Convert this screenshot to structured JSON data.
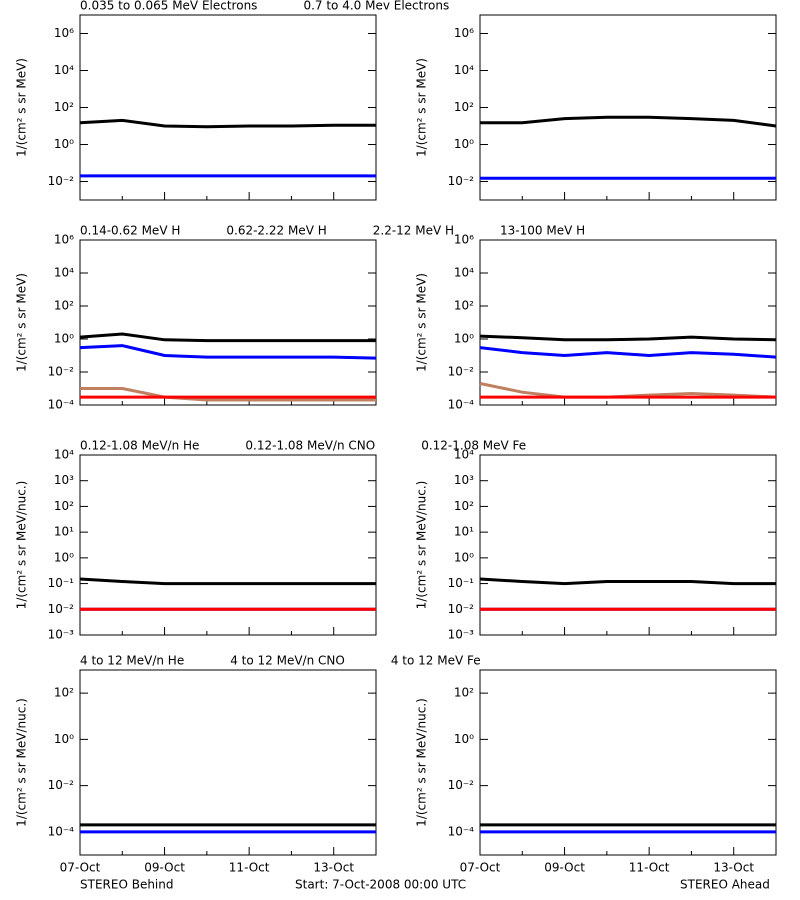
{
  "chart_data": [
    {
      "type": "line",
      "log_y": true,
      "ylabel": "1/(cm² s sr MeV)",
      "ylim": [
        0.001,
        10000000
      ],
      "yticks": [
        {
          "value": 0.01,
          "label": "10⁻²"
        },
        {
          "value": 1,
          "label": "10⁰"
        },
        {
          "value": 100,
          "label": "10²"
        },
        {
          "value": 10000,
          "label": "10⁴"
        },
        {
          "value": 1000000,
          "label": "10⁶"
        }
      ],
      "series": [
        {
          "name": "0.035 to 0.065 MeV Electrons",
          "color": "#000000",
          "behind": [
            15,
            20,
            10,
            9,
            10,
            10,
            11,
            11
          ],
          "ahead": [
            15,
            15,
            25,
            30,
            30,
            25,
            20,
            10
          ]
        },
        {
          "name": "0.7 to 4.0 Mev Electrons",
          "color": "#0000ff",
          "behind": [
            0.02,
            0.02,
            0.02,
            0.02,
            0.02,
            0.02,
            0.02,
            0.02
          ],
          "ahead": [
            0.015,
            0.015,
            0.015,
            0.015,
            0.015,
            0.015,
            0.015,
            0.015
          ]
        }
      ]
    },
    {
      "type": "line",
      "log_y": true,
      "ylabel": "1/(cm² s sr MeV)",
      "ylim": [
        0.0001,
        1000000
      ],
      "yticks": [
        {
          "value": 0.0001,
          "label": "10⁻⁴"
        },
        {
          "value": 0.01,
          "label": "10⁻²"
        },
        {
          "value": 1,
          "label": "10⁰"
        },
        {
          "value": 100,
          "label": "10²"
        },
        {
          "value": 10000,
          "label": "10⁴"
        },
        {
          "value": 1000000,
          "label": "10⁶"
        }
      ],
      "series": [
        {
          "name": "0.14-0.62 MeV H",
          "color": "#000000",
          "behind": [
            1.3,
            2,
            0.9,
            0.8,
            0.8,
            0.8,
            0.8,
            0.8
          ],
          "ahead": [
            1.5,
            1.2,
            0.9,
            0.9,
            1,
            1.3,
            1,
            0.9
          ]
        },
        {
          "name": "0.62-2.22 MeV H",
          "color": "#0000ff",
          "behind": [
            0.3,
            0.4,
            0.1,
            0.08,
            0.08,
            0.08,
            0.08,
            0.07
          ],
          "ahead": [
            0.3,
            0.15,
            0.1,
            0.15,
            0.1,
            0.15,
            0.12,
            0.08
          ]
        },
        {
          "name": "2.2-12 MeV H",
          "color": "#c08060",
          "behind": [
            0.001,
            0.001,
            0.0003,
            0.0002,
            0.0002,
            0.0002,
            0.0002,
            0.0002
          ],
          "ahead": [
            0.002,
            0.0006,
            0.0003,
            0.0003,
            0.0004,
            0.0005,
            0.0004,
            0.0003
          ]
        },
        {
          "name": "13-100 MeV H",
          "color": "#ff0000",
          "behind": [
            0.0003,
            0.0003,
            0.0003,
            0.0003,
            0.0003,
            0.0003,
            0.0003,
            0.0003
          ],
          "ahead": [
            0.0003,
            0.0003,
            0.0003,
            0.0003,
            0.0003,
            0.0003,
            0.0003,
            0.0003
          ]
        }
      ]
    },
    {
      "type": "line",
      "log_y": true,
      "ylabel": "1/(cm² s sr MeV/nuc.)",
      "ylim": [
        0.001,
        10000
      ],
      "yticks": [
        {
          "value": 0.001,
          "label": "10⁻³"
        },
        {
          "value": 0.01,
          "label": "10⁻²"
        },
        {
          "value": 0.1,
          "label": "10⁻¹"
        },
        {
          "value": 1,
          "label": "10⁰"
        },
        {
          "value": 10,
          "label": "10¹"
        },
        {
          "value": 100,
          "label": "10²"
        },
        {
          "value": 1000,
          "label": "10³"
        },
        {
          "value": 10000,
          "label": "10⁴"
        }
      ],
      "series": [
        {
          "name": "0.12-1.08 MeV/n He",
          "color": "#000000",
          "behind": [
            0.15,
            0.12,
            0.1,
            0.1,
            0.1,
            0.1,
            0.1,
            0.1
          ],
          "ahead": [
            0.15,
            0.12,
            0.1,
            0.12,
            0.12,
            0.12,
            0.1,
            0.1
          ]
        },
        {
          "name": "0.12-1.08 MeV/n CNO",
          "color": "#0000ff",
          "behind": [
            0.01,
            0.01,
            0.01,
            0.01,
            0.01,
            0.01,
            0.01,
            0.01
          ],
          "ahead": [
            0.01,
            0.01,
            0.01,
            0.01,
            0.01,
            0.01,
            0.01,
            0.01
          ]
        },
        {
          "name": "0.12-1.08 MeV Fe",
          "color": "#ff0000",
          "behind": [
            0.01,
            0.01,
            0.01,
            0.01,
            0.01,
            0.01,
            0.01,
            0.01
          ],
          "ahead": [
            0.01,
            0.01,
            0.01,
            0.01,
            0.01,
            0.01,
            0.01,
            0.01
          ]
        }
      ]
    },
    {
      "type": "line",
      "log_y": true,
      "ylabel": "1/(cm² s sr MeV/nuc.)",
      "ylim": [
        1e-05,
        1000
      ],
      "yticks": [
        {
          "value": 0.0001,
          "label": "10⁻⁴"
        },
        {
          "value": 0.01,
          "label": "10⁻²"
        },
        {
          "value": 1,
          "label": "10⁰"
        },
        {
          "value": 100,
          "label": "10²"
        }
      ],
      "categories": [
        "07-Oct",
        null,
        "09-Oct",
        null,
        "11-Oct",
        null,
        "13-Oct",
        null
      ],
      "series": [
        {
          "name": "4 to 12 MeV/n He",
          "color": "#000000",
          "behind": [
            0.0002,
            0.0002,
            0.0002,
            0.0002,
            0.0002,
            0.0002,
            0.0002,
            0.0002
          ],
          "ahead": [
            0.0002,
            0.0002,
            0.0002,
            0.0002,
            0.0002,
            0.0002,
            0.0002,
            0.0002
          ]
        },
        {
          "name": "4 to 12 MeV/n CNO",
          "color": "#0000ff",
          "behind": [
            0.0001,
            0.0001,
            0.0001,
            0.0001,
            0.0001,
            0.0001,
            0.0001,
            0.0001
          ],
          "ahead": [
            0.0001,
            0.0001,
            0.0001,
            0.0001,
            0.0001,
            0.0001,
            0.0001,
            0.0001
          ]
        },
        {
          "name": "4 to 12 MeV Fe",
          "color": "#ff0000",
          "behind": [
            null,
            null,
            null,
            null,
            null,
            null,
            null,
            null
          ],
          "ahead": [
            null,
            null,
            null,
            null,
            null,
            null,
            null,
            null
          ]
        }
      ]
    }
  ],
  "footer": {
    "left": "STEREO Behind",
    "center": "Start:  7-Oct-2008 00:00 UTC",
    "right": "STEREO Ahead"
  }
}
